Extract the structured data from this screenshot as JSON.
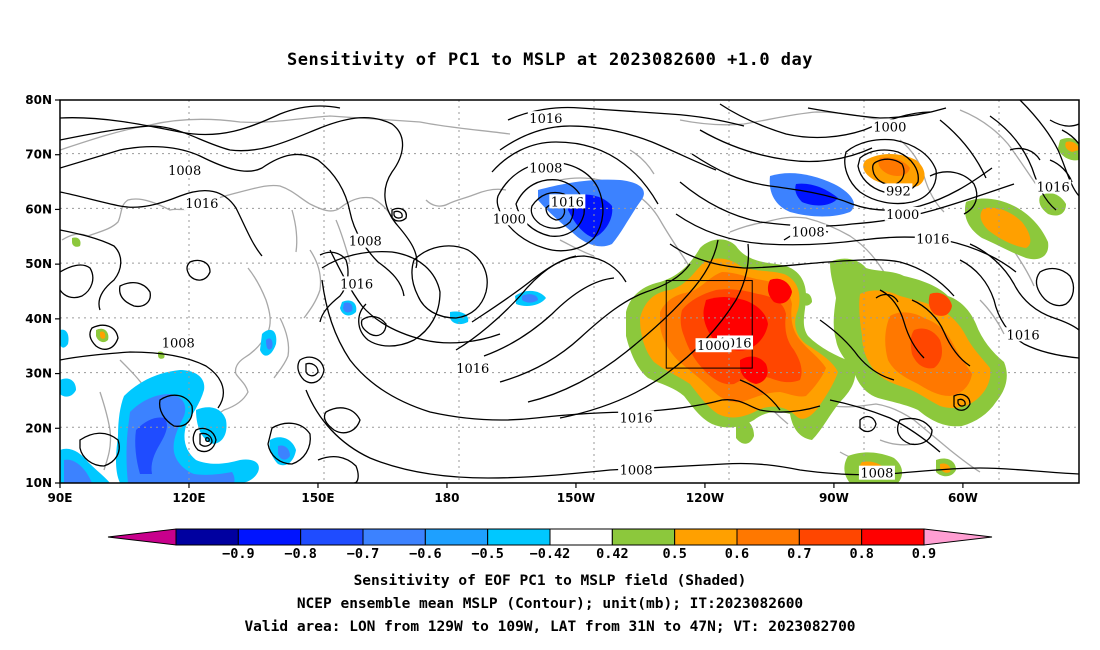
{
  "title": "Sensitivity of PC1 to MSLP at 2023082600 +1.0 day",
  "map": {
    "lon_ticks": [
      {
        "lon": 90,
        "label": "90E"
      },
      {
        "lon": 120,
        "label": "120E"
      },
      {
        "lon": 150,
        "label": "150E"
      },
      {
        "lon": 180,
        "label": "180"
      },
      {
        "lon": 210,
        "label": "150W"
      },
      {
        "lon": 240,
        "label": "120W"
      },
      {
        "lon": 270,
        "label": "90W"
      },
      {
        "lon": 300,
        "label": "60W"
      }
    ],
    "lat_ticks": [
      {
        "lat": 80,
        "label": "80N"
      },
      {
        "lat": 70,
        "label": "70N"
      },
      {
        "lat": 60,
        "label": "60N"
      },
      {
        "lat": 50,
        "label": "50N"
      },
      {
        "lat": 40,
        "label": "40N"
      },
      {
        "lat": 30,
        "label": "30N"
      },
      {
        "lat": 20,
        "label": "20N"
      },
      {
        "lat": 10,
        "label": "10N"
      }
    ],
    "lon_range": [
      90,
      327
    ],
    "lat_range": [
      10,
      80
    ],
    "valid_box": {
      "lon_w": -129,
      "lon_e": -109,
      "lat_s": 31,
      "lat_n": 47
    },
    "contour_labels": [
      {
        "text": "1016",
        "lon": 203,
        "lat": 76.5
      },
      {
        "text": "1000",
        "lon": 283,
        "lat": 75
      },
      {
        "text": "1008",
        "lon": 119,
        "lat": 67
      },
      {
        "text": "1008",
        "lon": 203,
        "lat": 67.5
      },
      {
        "text": "1016",
        "lon": 123,
        "lat": 61
      },
      {
        "text": "1016",
        "lon": 208,
        "lat": 61.3
      },
      {
        "text": "992",
        "lon": 285,
        "lat": 63.3
      },
      {
        "text": "1016",
        "lon": 321,
        "lat": 64
      },
      {
        "text": "1000",
        "lon": 194.5,
        "lat": 58.2
      },
      {
        "text": "1000",
        "lon": 286,
        "lat": 59
      },
      {
        "text": "1008",
        "lon": 264,
        "lat": 55.8
      },
      {
        "text": "1016",
        "lon": 293,
        "lat": 54.5
      },
      {
        "text": "1008",
        "lon": 161,
        "lat": 54.1
      },
      {
        "text": "1016",
        "lon": 159,
        "lat": 46.3
      },
      {
        "text": "1016",
        "lon": 314,
        "lat": 37
      },
      {
        "text": "1008",
        "lon": 117.5,
        "lat": 35.5
      },
      {
        "text": "1016",
        "lon": 247,
        "lat": 35.5
      },
      {
        "text": "1000",
        "lon": 242,
        "lat": 35
      },
      {
        "text": "1016",
        "lon": 186,
        "lat": 30.8
      },
      {
        "text": "1016",
        "lon": 224,
        "lat": 21.8
      },
      {
        "text": "1008",
        "lon": 224,
        "lat": 12.3
      },
      {
        "text": "1008",
        "lon": 280,
        "lat": 11.7
      }
    ]
  },
  "colorbar": {
    "colors": [
      "#c8008c",
      "#0000a0",
      "#0014ff",
      "#1f4cff",
      "#3c82ff",
      "#1ea0ff",
      "#00c8ff",
      "#ffffff",
      "#8cc83c",
      "#ffa000",
      "#ff7800",
      "#ff4600",
      "#ff0000",
      "#ff9ed2"
    ],
    "labels": [
      "−0.9",
      "−0.8",
      "−0.7",
      "−0.6",
      "−0.5",
      "−0.42",
      "0.42",
      "0.5",
      "0.6",
      "0.7",
      "0.8",
      "0.9"
    ]
  },
  "captions": {
    "line1": "Sensitivity of EOF PC1 to MSLP field (Shaded)",
    "line2": "NCEP ensemble mean MSLP (Contour); unit(mb); IT:2023082600",
    "line3": "Valid area: LON from 129W to 109W, LAT from 31N to 47N; VT: 2023082700"
  }
}
